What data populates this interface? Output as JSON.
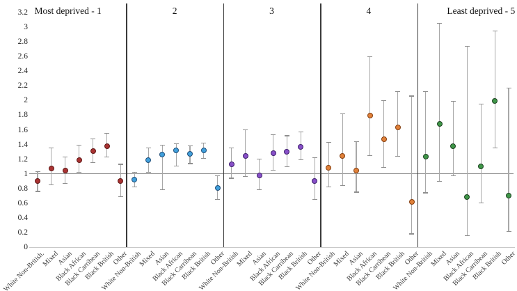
{
  "chart_data": {
    "type": "scatter",
    "description": "Forest-style plot of point estimates with 95% confidence interval error bars, by ethnicity, across five deprivation quintile panels",
    "ylim": [
      0,
      3.2
    ],
    "yticks": [
      "3.2",
      "3",
      "2.8",
      "2.6",
      "2.4",
      "2.2",
      "2",
      "1.8",
      "1.6",
      "1.4",
      "1.2",
      "1",
      "0.8",
      "0.6",
      "0.4",
      "0.2",
      "0"
    ],
    "reference_line": 1,
    "grid": "off",
    "legend": "none",
    "error_bar_color": "#a8a8a8",
    "panels": [
      {
        "title": "Most deprived - 1",
        "marker_fill": "#a93232",
        "marker_stroke": "#5e1715",
        "categories": [
          "White Non-British.",
          "Mixed",
          "Asian",
          "Black African",
          "Black Carribean",
          "Black British",
          "Other"
        ],
        "values": [
          0.9,
          1.07,
          1.04,
          1.19,
          1.31,
          1.38,
          0.9
        ],
        "ci_low": [
          0.76,
          0.85,
          0.87,
          1.02,
          1.15,
          1.23,
          0.69
        ],
        "ci_high": [
          1.03,
          1.35,
          1.23,
          1.39,
          1.48,
          1.55,
          1.13
        ]
      },
      {
        "title": "2",
        "marker_fill": "#41a0dc",
        "marker_stroke": "#1f4e79",
        "categories": [
          "White Non-British",
          "Mixed",
          "Asian",
          "Black African",
          "Black Carribean",
          "Black British",
          "Other"
        ],
        "values": [
          0.92,
          1.19,
          1.26,
          1.32,
          1.27,
          1.32,
          0.81
        ],
        "ci_low": [
          0.82,
          1.02,
          0.78,
          1.11,
          1.14,
          1.21,
          0.65
        ],
        "ci_high": [
          1.02,
          1.35,
          1.39,
          1.41,
          1.38,
          1.42,
          0.97
        ]
      },
      {
        "title": "3",
        "marker_fill": "#8850c8",
        "marker_stroke": "#3d1e6d",
        "categories": [
          "White Non-British",
          "Mixed",
          "Asian",
          "Black African",
          "Black Carribean",
          "Black British",
          "Other"
        ],
        "values": [
          1.13,
          1.24,
          0.98,
          1.28,
          1.3,
          1.37,
          0.9
        ],
        "ci_low": [
          0.94,
          0.96,
          0.78,
          1.05,
          1.1,
          1.19,
          0.65
        ],
        "ci_high": [
          1.35,
          1.6,
          1.2,
          1.53,
          1.52,
          1.57,
          1.22
        ]
      },
      {
        "title": "4",
        "marker_fill": "#e0813a",
        "marker_stroke": "#843c0c",
        "categories": [
          "White Non-British",
          "Mixed",
          "Asian",
          "Black African",
          "Black Carribean",
          "Black British",
          "Other"
        ],
        "values": [
          1.08,
          1.24,
          1.04,
          1.79,
          1.47,
          1.63,
          0.62
        ],
        "ci_low": [
          0.82,
          0.84,
          0.75,
          1.25,
          1.09,
          1.24,
          0.18
        ],
        "ci_high": [
          1.43,
          1.82,
          1.44,
          2.6,
          2.0,
          2.12,
          2.06
        ]
      },
      {
        "title": "Least deprived - 5",
        "marker_fill": "#3f9648",
        "marker_stroke": "#1c4220",
        "categories": [
          "White Non-British",
          "Mixed",
          "Asian",
          "Black African",
          "Black Carribean",
          "Black British",
          "Other"
        ],
        "values": [
          1.23,
          1.68,
          1.38,
          0.68,
          1.1,
          1.99,
          0.7
        ],
        "ci_low": [
          0.74,
          0.9,
          0.97,
          0.16,
          0.6,
          1.35,
          0.21
        ],
        "ci_high": [
          2.12,
          3.05,
          1.99,
          2.74,
          1.95,
          2.95,
          2.17
        ]
      }
    ]
  }
}
